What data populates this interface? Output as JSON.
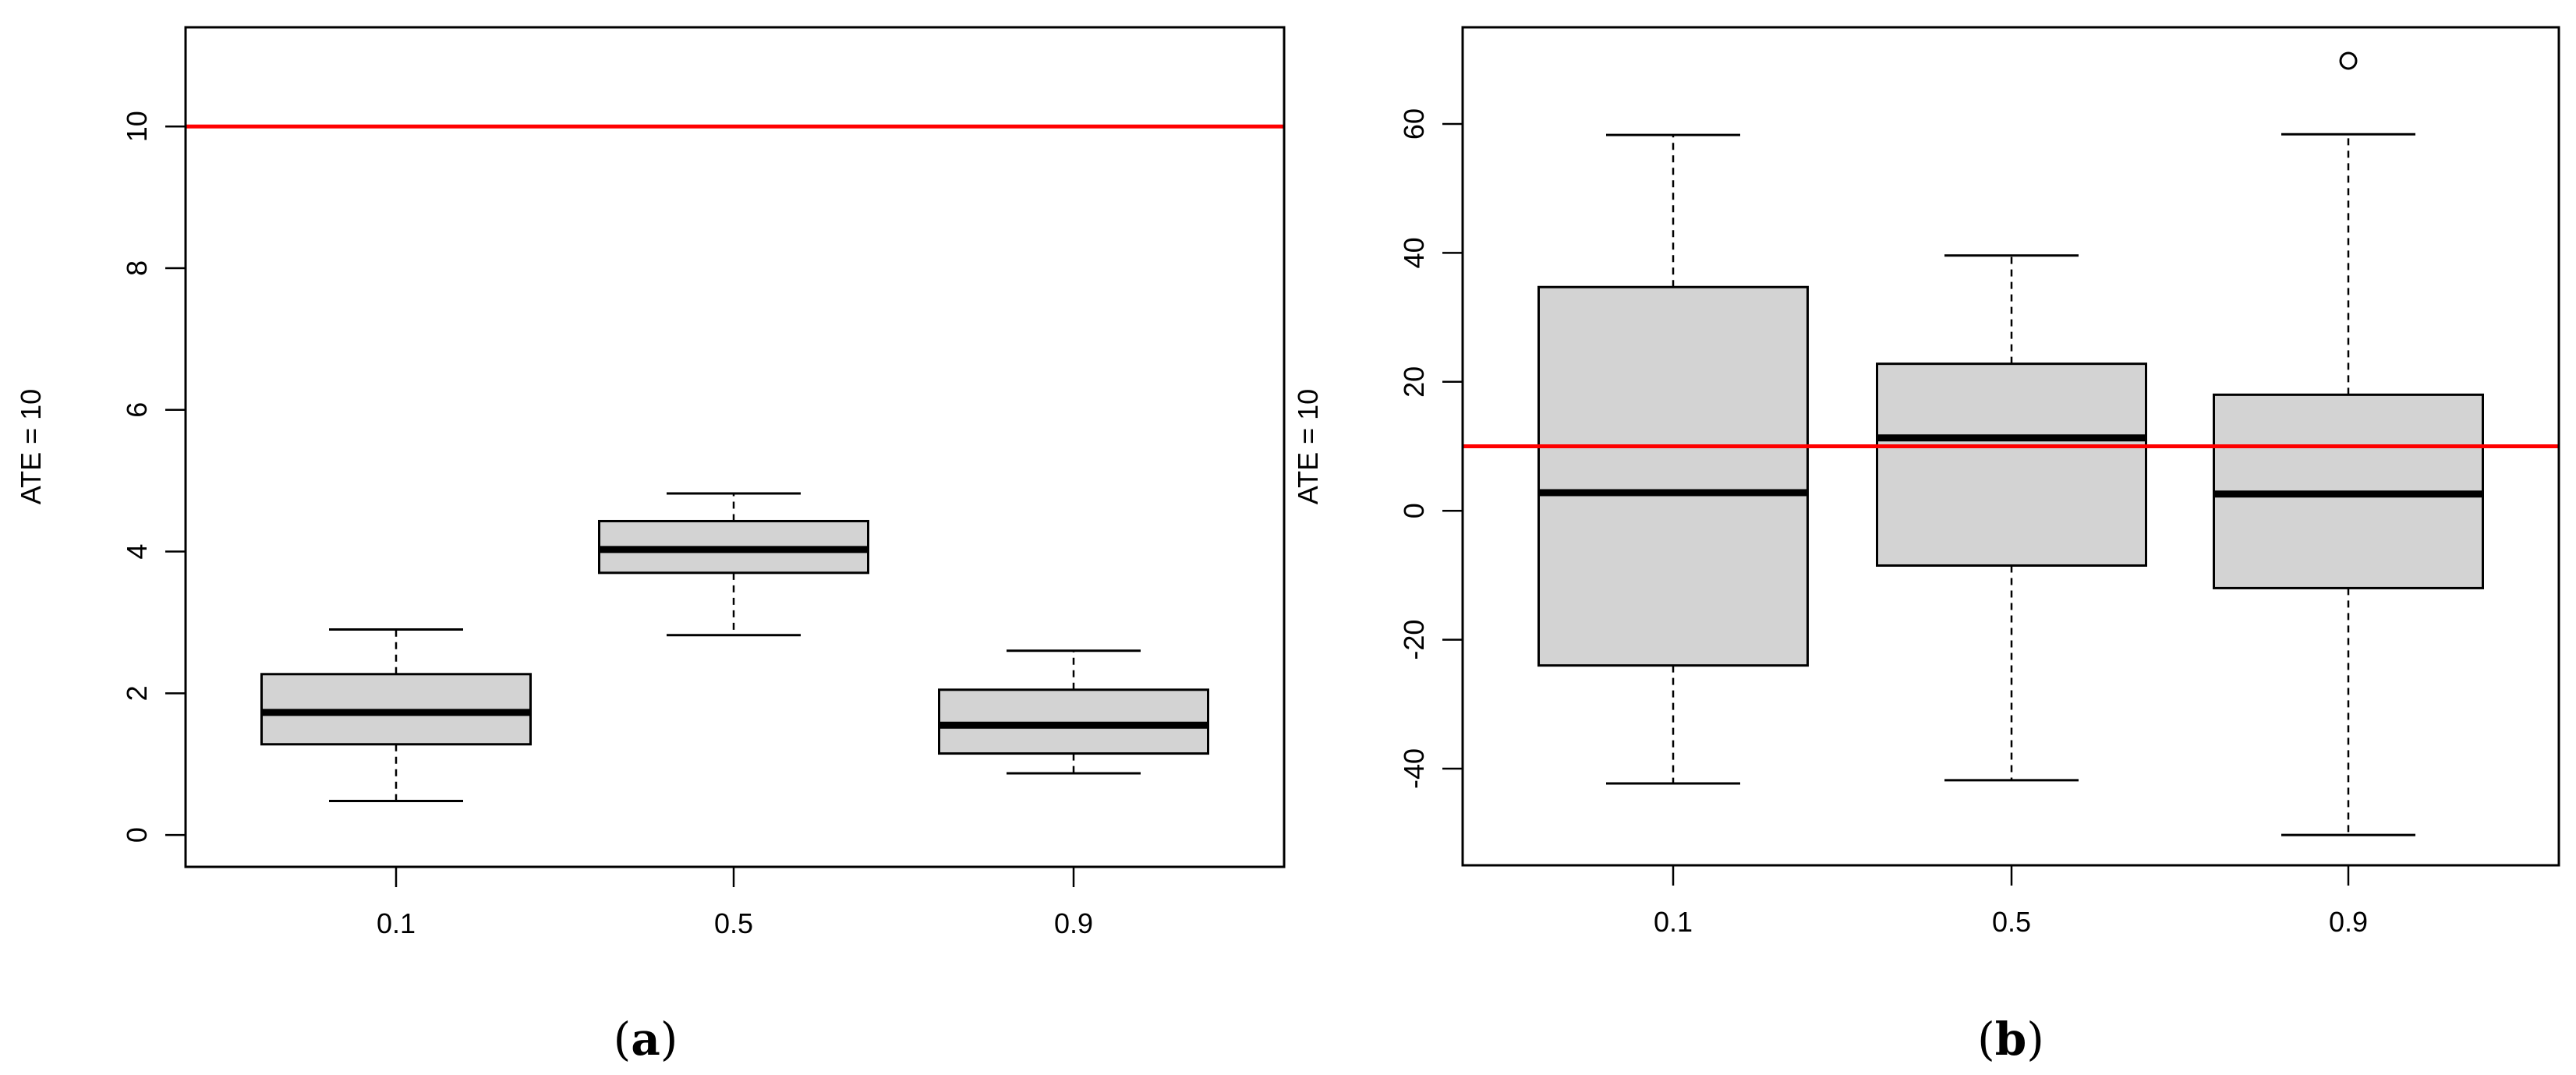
{
  "chart_data": [
    {
      "type": "boxplot",
      "panel_label": "(a)",
      "ylabel": "ATE = 10",
      "categories": [
        "0.1",
        "0.5",
        "0.9"
      ],
      "ylim": [
        -0.45,
        11.4
      ],
      "yticks": [
        0,
        2,
        4,
        6,
        8,
        10
      ],
      "reference_line": {
        "y": 10,
        "color": "#ff0000"
      },
      "boxes": [
        {
          "category": "0.1",
          "whisker_low": 0.48,
          "q1": 1.28,
          "median": 1.73,
          "q3": 2.27,
          "whisker_high": 2.9,
          "outliers": []
        },
        {
          "category": "0.5",
          "whisker_low": 2.82,
          "q1": 3.7,
          "median": 4.03,
          "q3": 4.43,
          "whisker_high": 4.82,
          "outliers": []
        },
        {
          "category": "0.9",
          "whisker_low": 0.87,
          "q1": 1.15,
          "median": 1.55,
          "q3": 2.05,
          "whisker_high": 2.6,
          "outliers": []
        }
      ],
      "box_fill": "#d3d3d3"
    },
    {
      "type": "boxplot",
      "panel_label": "(b)",
      "ylabel": "ATE = 10",
      "categories": [
        "0.1",
        "0.5",
        "0.9"
      ],
      "ylim": [
        -55,
        75
      ],
      "yticks": [
        -40,
        -20,
        0,
        20,
        40,
        60
      ],
      "reference_line": {
        "y": 10,
        "color": "#ff0000"
      },
      "boxes": [
        {
          "category": "0.1",
          "whisker_low": -42.3,
          "q1": -24.0,
          "median": 2.8,
          "q3": 34.7,
          "whisker_high": 58.3,
          "outliers": []
        },
        {
          "category": "0.5",
          "whisker_low": -41.8,
          "q1": -8.5,
          "median": 11.3,
          "q3": 22.8,
          "whisker_high": 39.6,
          "outliers": []
        },
        {
          "category": "0.9",
          "whisker_low": -50.3,
          "q1": -12.0,
          "median": 2.6,
          "q3": 18.0,
          "whisker_high": 58.4,
          "outliers": [
            69.8
          ]
        }
      ],
      "box_fill": "#d3d3d3"
    }
  ]
}
